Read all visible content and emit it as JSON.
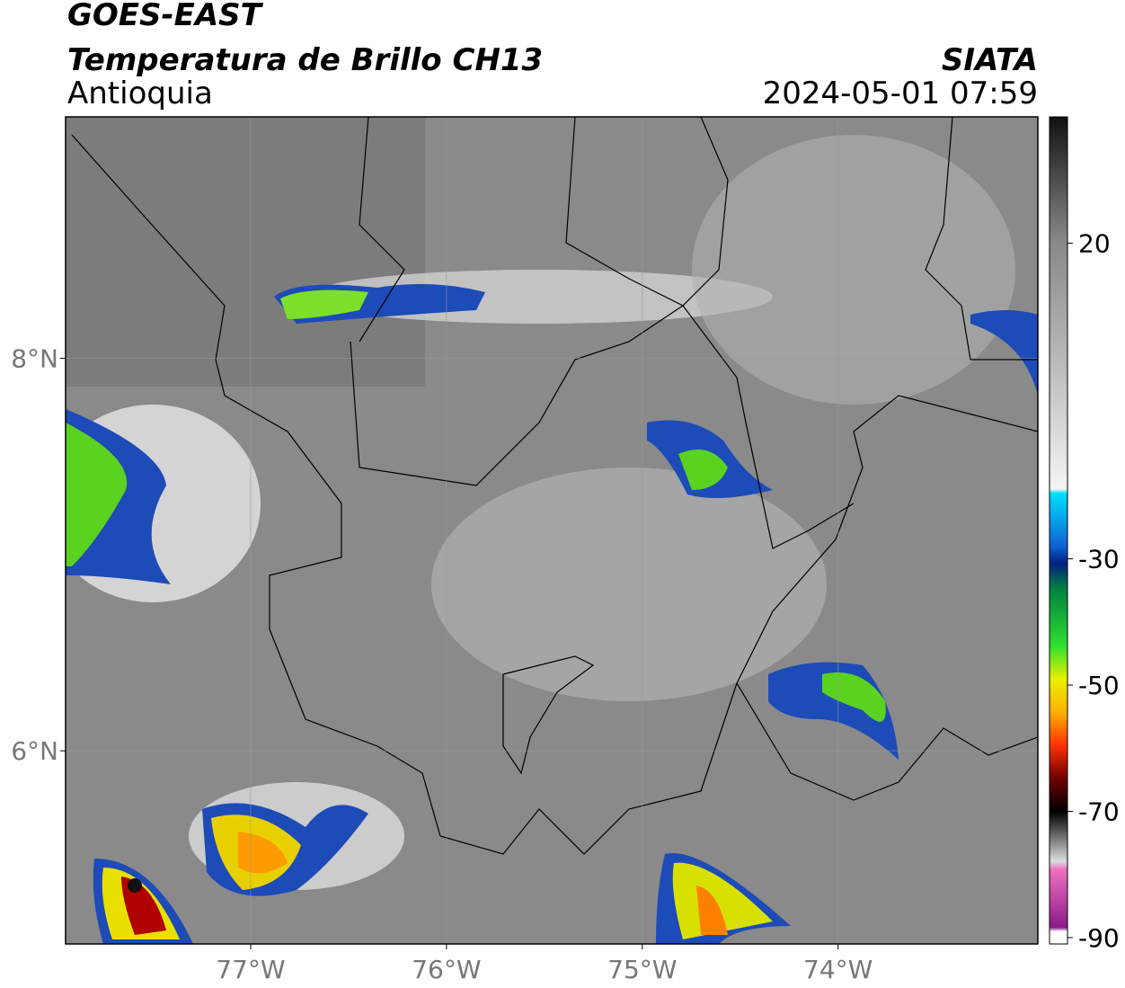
{
  "header": {
    "title": "GOES-EAST",
    "subtitle": "Temperatura de Brillo CH13",
    "region": "Antioquia",
    "source": "SIATA",
    "timestamp": "2024-05-01 07:59"
  },
  "map": {
    "lonlim": [
      -77.945,
      -72.98
    ],
    "latlim": [
      5.016,
      9.23
    ],
    "lon_ticks": [
      {
        "value": -77,
        "label": "77°W"
      },
      {
        "value": -76,
        "label": "76°W"
      },
      {
        "value": -75,
        "label": "75°W"
      },
      {
        "value": -74,
        "label": "74°W"
      }
    ],
    "lat_ticks": [
      {
        "value": 8,
        "label": "8°N"
      },
      {
        "value": 6,
        "label": "6°N"
      }
    ]
  },
  "colorbar": {
    "lim": [
      -91,
      40
    ],
    "ticks": [
      20,
      -30,
      -50,
      -70,
      -90
    ]
  }
}
